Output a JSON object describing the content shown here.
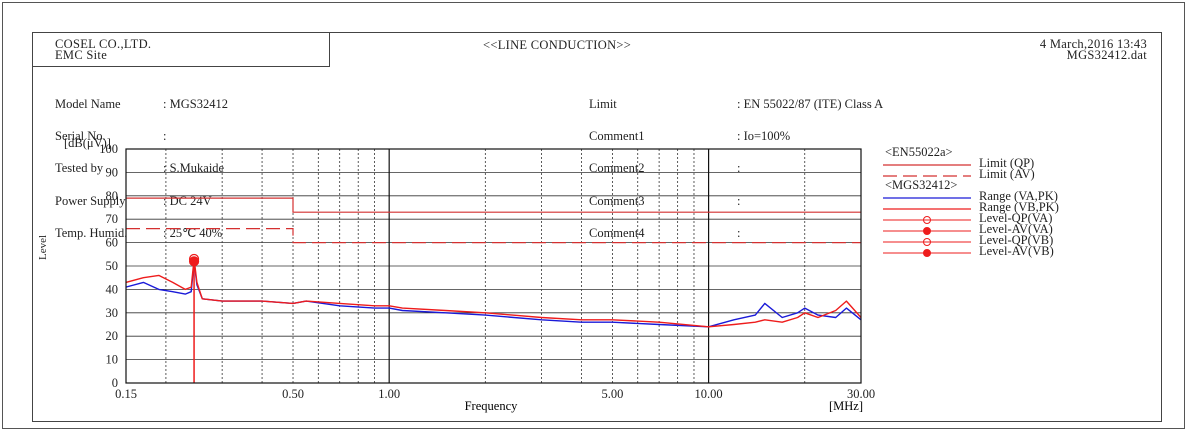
{
  "header": {
    "company": "COSEL CO.,LTD.",
    "site": "EMC Site",
    "title": "<<LINE CONDUCTION>>",
    "date": "4 March,2016 13:43",
    "file": "MGS32412.dat"
  },
  "info": {
    "labels_left": [
      "Model Name",
      "Serial No.",
      "Tested by",
      "Power Supply",
      "Temp. Humid."
    ],
    "values_left": [
      ": MGS32412",
      ":",
      ": S.Mukaide",
      ": DC 24V",
      ": 25℃ 40%"
    ],
    "labels_right": [
      "Limit",
      "Comment1",
      "Comment2",
      "Comment3",
      "Comment4"
    ],
    "values_right": [
      ": EN 55022/87 (ITE) Class A",
      ": Io=100%",
      ":",
      ":",
      ":"
    ]
  },
  "legend": {
    "group1": "<EN55022a>",
    "limit_qp": "Limit (QP)",
    "limit_av": "Limit (AV)",
    "group2": "<MGS32412>",
    "range_va": "Range (VA,PK)",
    "range_vb": "Range (VB,PK)",
    "level_qp_va": "Level-QP(VA)",
    "level_av_va": "Level-AV(VA)",
    "level_qp_vb": "Level-QP(VB)",
    "level_av_vb": "Level-AV(VB)"
  },
  "colors": {
    "limit": "#d43030",
    "range_va": "#1a1ad8",
    "range_vb": "#ee1c1c",
    "grid": "#333333"
  },
  "chart_data": {
    "type": "line",
    "xlabel": "Frequency",
    "xunit": "[MHz]",
    "ylabel": "[dB(μV)]",
    "yaxis_title": "Level",
    "x_scale": "log",
    "xlim": [
      0.15,
      30
    ],
    "ylim": [
      0,
      100
    ],
    "x_ticks": [
      0.15,
      0.5,
      1.0,
      5.0,
      10.0,
      30.0
    ],
    "x_tick_labels": [
      "0.15",
      "0.50",
      "1.00",
      "5.00",
      "10.00",
      "30.00"
    ],
    "y_ticks": [
      0,
      10,
      20,
      30,
      40,
      50,
      60,
      70,
      80,
      90,
      100
    ],
    "y_tick_labels": [
      "0",
      "10",
      "20",
      "30",
      "40",
      "50",
      "60",
      "70",
      "80",
      "90",
      "100"
    ],
    "limits": [
      {
        "name": "Limit (QP)",
        "style": "solid",
        "x": [
          0.15,
          0.5,
          0.5,
          30
        ],
        "y": [
          79,
          79,
          73,
          73
        ]
      },
      {
        "name": "Limit (AV)",
        "style": "dashed",
        "x": [
          0.15,
          0.5,
          0.5,
          30
        ],
        "y": [
          66,
          66,
          60,
          60
        ]
      }
    ],
    "series": [
      {
        "name": "Range (VA,PK)",
        "x": [
          0.15,
          0.17,
          0.19,
          0.21,
          0.23,
          0.24,
          0.245,
          0.25,
          0.26,
          0.3,
          0.4,
          0.5,
          0.55,
          0.7,
          0.9,
          1.0,
          1.1,
          1.5,
          2.0,
          3.0,
          4.0,
          5.0,
          7.0,
          10.0,
          12.0,
          14.0,
          15.0,
          17.0,
          19.0,
          20.0,
          22.0,
          25.0,
          27.0,
          30.0
        ],
        "y": [
          41,
          43,
          40,
          39,
          38,
          39,
          52,
          42,
          36,
          35,
          35,
          34,
          35,
          33,
          32,
          32,
          31,
          30,
          29,
          27,
          26,
          26,
          25,
          24,
          27,
          29,
          34,
          28,
          30,
          32,
          29,
          28,
          32,
          27
        ]
      },
      {
        "name": "Range (VB,PK)",
        "x": [
          0.15,
          0.17,
          0.19,
          0.21,
          0.23,
          0.24,
          0.245,
          0.25,
          0.26,
          0.3,
          0.4,
          0.5,
          0.55,
          0.7,
          0.9,
          1.0,
          1.1,
          1.5,
          2.0,
          3.0,
          4.0,
          5.0,
          7.0,
          10.0,
          12.0,
          14.0,
          15.0,
          17.0,
          19.0,
          20.0,
          22.0,
          25.0,
          27.0,
          30.0
        ],
        "y": [
          43,
          45,
          46,
          43,
          40,
          41,
          53,
          43,
          36,
          35,
          35,
          34,
          35,
          34,
          33,
          33,
          32,
          31,
          30,
          28,
          27,
          27,
          26,
          24,
          25,
          26,
          27,
          26,
          28,
          30,
          28,
          31,
          35,
          28
        ]
      },
      {
        "name": "Level-QP(VA)",
        "marker": "circle",
        "x": [
          0.245
        ],
        "y": [
          53
        ]
      },
      {
        "name": "Level-AV(VA)",
        "marker": "circle",
        "x": [
          0.245
        ],
        "y": [
          52
        ]
      }
    ],
    "title": "<<LINE CONDUCTION>>"
  }
}
